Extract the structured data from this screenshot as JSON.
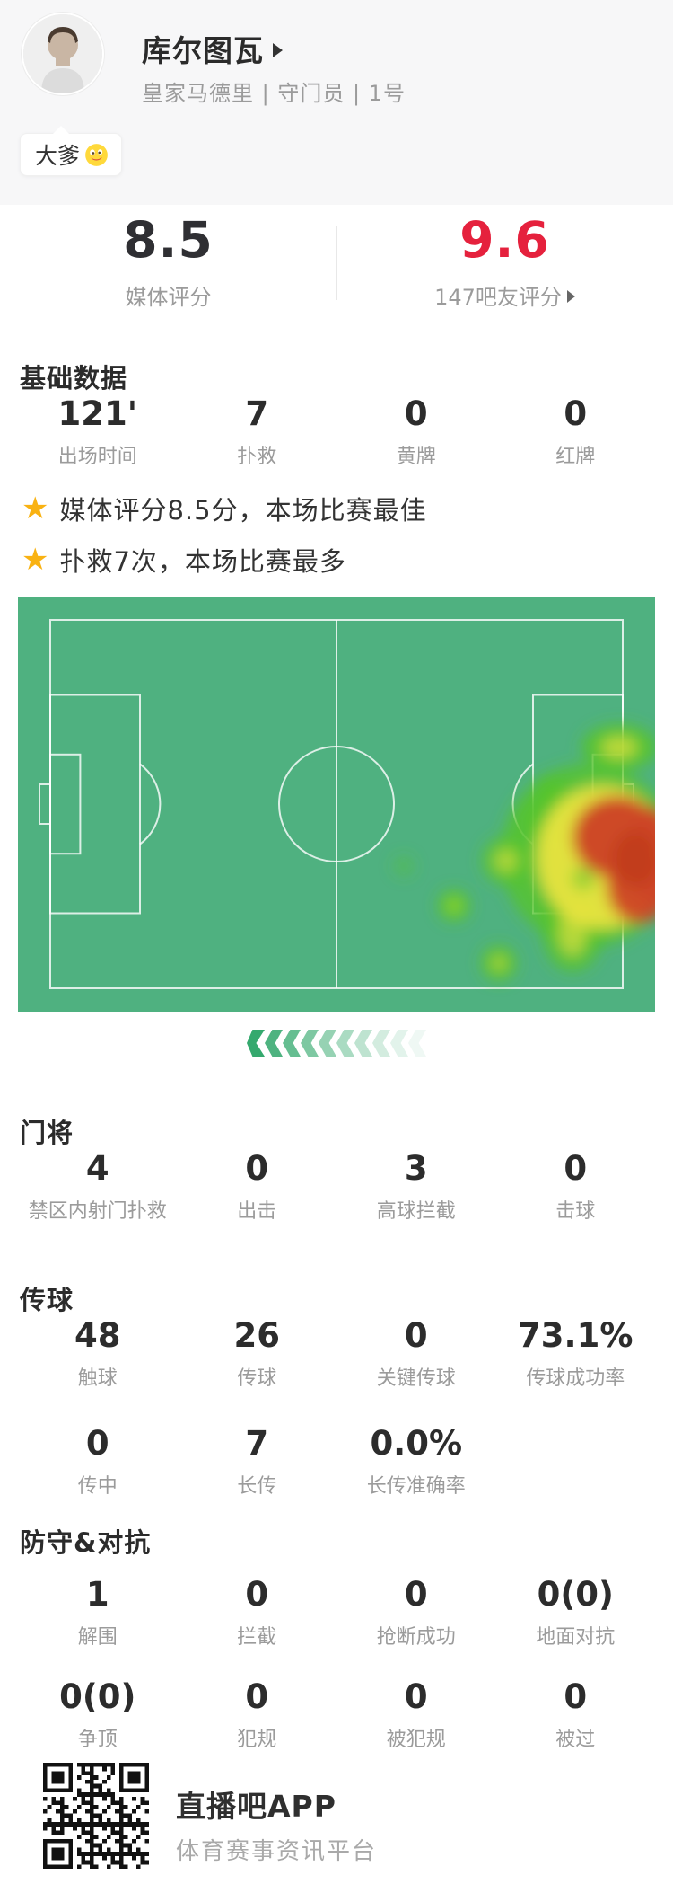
{
  "header": {
    "name": "库尔图瓦",
    "meta": "皇家马德里 | 守门员 | 1号",
    "badge": "大爹"
  },
  "icons": {
    "star": "★",
    "name_arrow": "right-triangle",
    "fans_arrow": "right-triangle",
    "badge_emoji": "zany-face"
  },
  "ratings": {
    "media": {
      "value": "8.5",
      "label": "媒体评分"
    },
    "fans": {
      "value": "9.6",
      "label": "147吧友评分"
    }
  },
  "sections": {
    "basic": {
      "title": "基础数据",
      "stats": [
        {
          "value": "121'",
          "label": "出场时间"
        },
        {
          "value": "7",
          "label": "扑救"
        },
        {
          "value": "0",
          "label": "黄牌"
        },
        {
          "value": "0",
          "label": "红牌"
        }
      ]
    },
    "highlights": [
      {
        "text": "媒体评分8.5分，本场比赛最佳"
      },
      {
        "text": "扑救7次，本场比赛最多"
      }
    ],
    "heatmap": {
      "description": "goalkeeper activity heatmap, hotspot in right goal area",
      "attack_direction": "left"
    },
    "goalkeeper": {
      "title": "门将",
      "stats": [
        {
          "value": "4",
          "label": "禁区内射门扑救"
        },
        {
          "value": "0",
          "label": "出击"
        },
        {
          "value": "3",
          "label": "高球拦截"
        },
        {
          "value": "0",
          "label": "击球"
        }
      ]
    },
    "passing": {
      "title": "传球",
      "rows": [
        [
          {
            "value": "48",
            "label": "触球"
          },
          {
            "value": "26",
            "label": "传球"
          },
          {
            "value": "0",
            "label": "关键传球"
          },
          {
            "value": "73.1%",
            "label": "传球成功率"
          }
        ],
        [
          {
            "value": "0",
            "label": "传中"
          },
          {
            "value": "7",
            "label": "长传"
          },
          {
            "value": "0.0%",
            "label": "长传准确率"
          }
        ]
      ]
    },
    "defense": {
      "title": "防守&对抗",
      "rows": [
        [
          {
            "value": "1",
            "label": "解围"
          },
          {
            "value": "0",
            "label": "拦截"
          },
          {
            "value": "0",
            "label": "抢断成功"
          },
          {
            "value": "0(0)",
            "label": "地面对抗"
          }
        ],
        [
          {
            "value": "0(0)",
            "label": "争顶"
          },
          {
            "value": "0",
            "label": "犯规"
          },
          {
            "value": "0",
            "label": "被犯规"
          },
          {
            "value": "0",
            "label": "被过"
          }
        ]
      ]
    }
  },
  "footer": {
    "app_name": "直播吧APP",
    "tagline": "体育赛事资讯平台"
  },
  "colors": {
    "accent_red": "#e5213d",
    "star_gold": "#f9b212",
    "pitch_green": "#4fb180",
    "heat_green": "#55c42c",
    "heat_yellow": "#e9e43f",
    "heat_red": "#cd4526",
    "chevron_green": "#35a96e"
  }
}
